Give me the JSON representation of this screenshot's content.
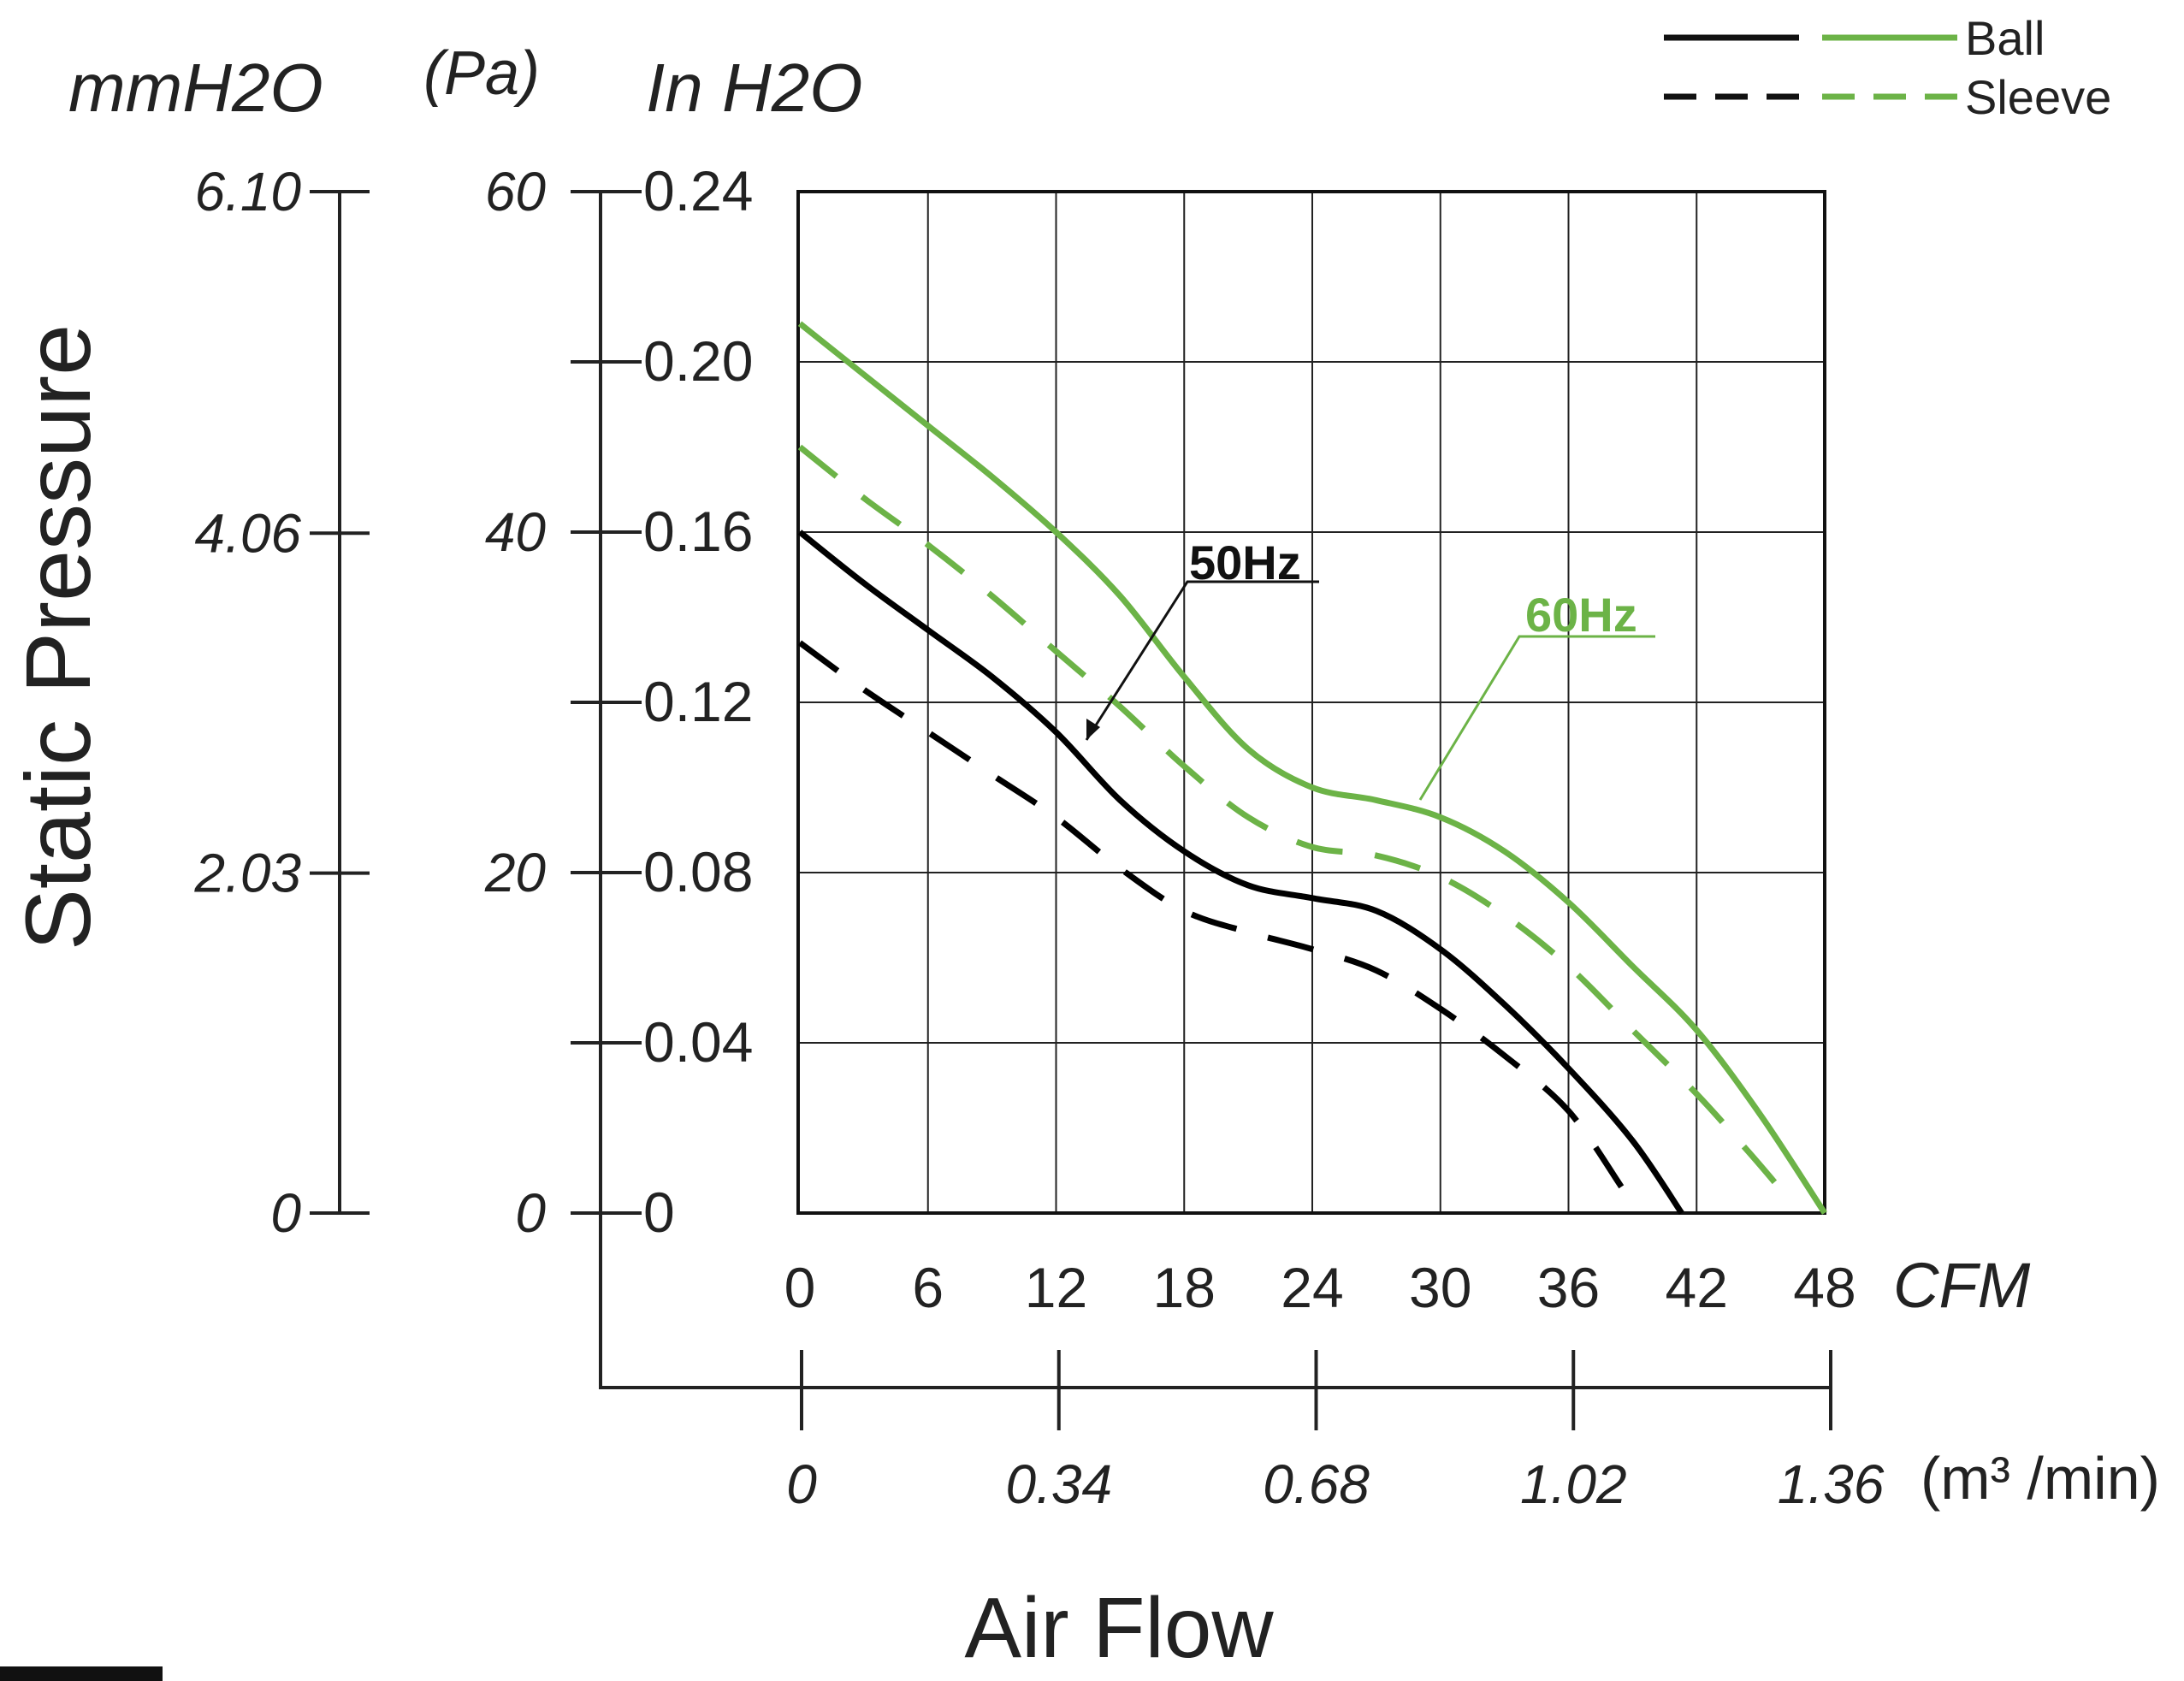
{
  "chart_data": {
    "type": "line",
    "title": "",
    "xlabel": "Air Flow",
    "ylabel": "Static Pressure",
    "grid": true,
    "x_unit": "CFM",
    "x_ticks": [
      "0",
      "6",
      "12",
      "18",
      "24",
      "30",
      "36",
      "42",
      "48"
    ],
    "xlim": [
      0,
      48
    ],
    "x2_unit": "(m³ /min)",
    "x2_ticks": [
      "0",
      "0.34",
      "0.68",
      "1.02",
      "1.36"
    ],
    "y_unit": "In H2O",
    "y_ticks": [
      "0",
      "0.04",
      "0.08",
      "0.12",
      "0.16",
      "0.20",
      "0.24"
    ],
    "ylim": [
      0,
      0.24
    ],
    "y_pa_unit": "(Pa)",
    "y_pa_ticks": [
      "0",
      "20",
      "40",
      "60"
    ],
    "y_mm_unit": "mmH2O",
    "y_mm_ticks": [
      "0",
      "2.03",
      "4.06",
      "6.10"
    ],
    "legend": {
      "placement": "top-right",
      "entries": [
        {
          "label": "Ball",
          "style": "solid"
        },
        {
          "label": "Sleeve",
          "style": "dashed"
        }
      ]
    },
    "annotations": [
      {
        "text": "50Hz",
        "color": "#000000"
      },
      {
        "text": "60Hz",
        "color": "#6cb347"
      }
    ],
    "series": [
      {
        "color": "#6cb347",
        "dash": false,
        "width": 7,
        "x": [
          0,
          3,
          6,
          9,
          12,
          15,
          18,
          21,
          24,
          27,
          30,
          33,
          36,
          39,
          42,
          45,
          48
        ],
        "y": [
          0.209,
          0.197,
          0.185,
          0.173,
          0.16,
          0.145,
          0.126,
          0.109,
          0.1,
          0.097,
          0.093,
          0.085,
          0.073,
          0.058,
          0.043,
          0.023,
          0.0
        ]
      },
      {
        "color": "#6cb347",
        "dash": true,
        "width": 7,
        "x": [
          0,
          3,
          6,
          9,
          12,
          15,
          18,
          21,
          24,
          27,
          30,
          33,
          36,
          39,
          42,
          44.5,
          46.2
        ],
        "y": [
          0.18,
          0.168,
          0.157,
          0.145,
          0.132,
          0.119,
          0.105,
          0.093,
          0.086,
          0.084,
          0.079,
          0.07,
          0.058,
          0.043,
          0.028,
          0.014,
          0.004
        ]
      },
      {
        "color": "#000000",
        "dash": false,
        "width": 7,
        "x": [
          0,
          3,
          6,
          9,
          12,
          15,
          18,
          21,
          24,
          27,
          30,
          33,
          36,
          39,
          41.3
        ],
        "y": [
          0.16,
          0.148,
          0.137,
          0.126,
          0.113,
          0.097,
          0.085,
          0.077,
          0.074,
          0.071,
          0.062,
          0.049,
          0.034,
          0.017,
          0.0
        ]
      },
      {
        "color": "#000000",
        "dash": true,
        "width": 7,
        "x": [
          0,
          3,
          6,
          9,
          12,
          15,
          18,
          21,
          24,
          27,
          30,
          33,
          36,
          38.5
        ],
        "y": [
          0.134,
          0.123,
          0.113,
          0.103,
          0.093,
          0.081,
          0.071,
          0.066,
          0.062,
          0.057,
          0.048,
          0.037,
          0.024,
          0.006
        ]
      }
    ]
  }
}
